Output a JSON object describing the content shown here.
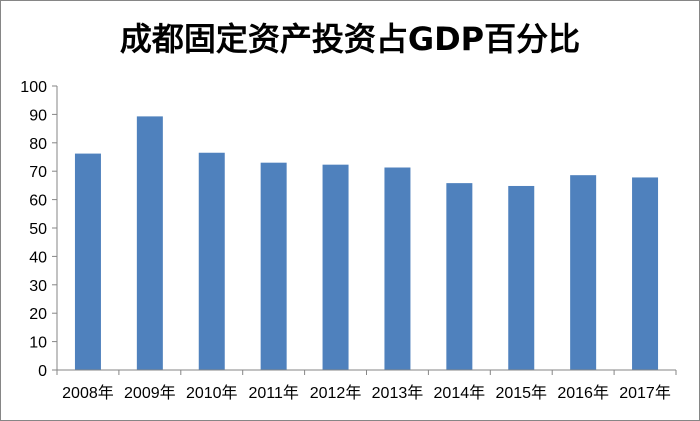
{
  "chart_data": {
    "type": "bar",
    "title": "成都固定资产投资占GDP百分比",
    "categories": [
      "2008年",
      "2009年",
      "2010年",
      "2011年",
      "2012年",
      "2013年",
      "2014年",
      "2015年",
      "2016年",
      "2017年"
    ],
    "values": [
      76.2,
      89.3,
      76.5,
      73.0,
      72.3,
      71.3,
      65.8,
      64.8,
      68.6,
      67.8
    ],
    "xlabel": "",
    "ylabel": "",
    "ylim": [
      0,
      100
    ],
    "yticks": [
      0,
      10,
      20,
      30,
      40,
      50,
      60,
      70,
      80,
      90,
      100
    ],
    "grid": false,
    "legend": "none",
    "bar_color": "#4f81bd",
    "axis_color": "#868686"
  }
}
